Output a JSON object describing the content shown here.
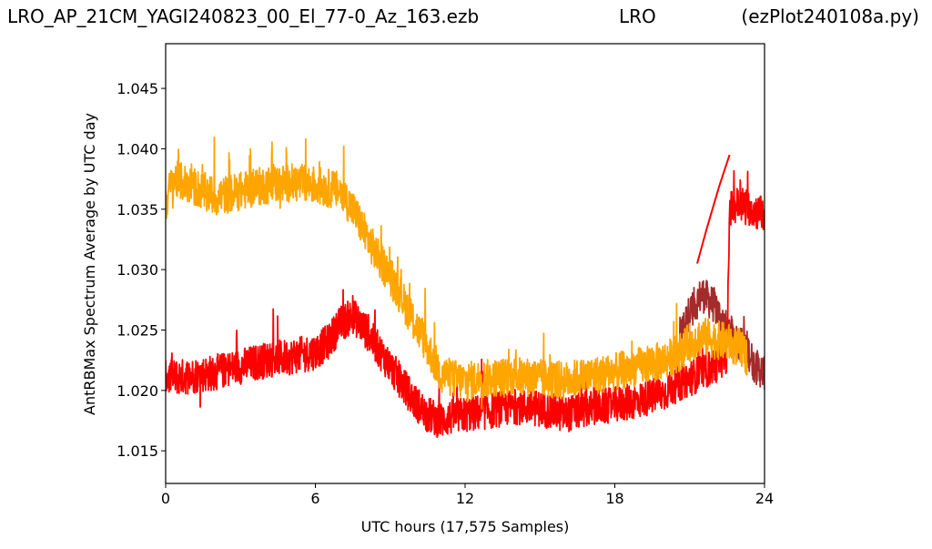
{
  "header": {
    "left": "LRO_AP_21CM_YAGI240823_00_El_77-0_Az_163.ezb",
    "middle": "LRO",
    "right": "(ezPlot240108a.py)"
  },
  "chart_data": {
    "type": "line",
    "title": "",
    "xlabel": "UTC hours  (17,575 Samples)",
    "ylabel": "AntRBMax Spectrum Average by UTC day",
    "xlim": [
      0,
      24
    ],
    "ylim": [
      1.0123,
      1.0487
    ],
    "xticks": [
      0,
      6,
      12,
      18,
      24
    ],
    "xtick_labels": [
      "0",
      "6",
      "12",
      "18",
      "24"
    ],
    "yticks": [
      1.015,
      1.02,
      1.025,
      1.03,
      1.035,
      1.04,
      1.045
    ],
    "ytick_labels": [
      "1.015",
      "1.020",
      "1.025",
      "1.030",
      "1.035",
      "1.040",
      "1.045"
    ],
    "grid": false,
    "legend": "none",
    "series": [
      {
        "color": "#a52a2a",
        "x": [
          20.6,
          21.0,
          21.5,
          22.0,
          22.5,
          23.0,
          23.3,
          23.6,
          24.0
        ],
        "y": [
          1.0245,
          1.0265,
          1.028,
          1.027,
          1.025,
          1.024,
          1.0235,
          1.022,
          1.0215
        ],
        "noise": 0.003
      },
      {
        "color": "#ff0000",
        "x": [
          0,
          1,
          2,
          3,
          4,
          5,
          6,
          6.5,
          7,
          7.5,
          8,
          8.5,
          9,
          9.5,
          10,
          10.5,
          11,
          11.5,
          12,
          13,
          14,
          15,
          16,
          17,
          18,
          19,
          20,
          20.5,
          21,
          21.5,
          22,
          22.5,
          22.6,
          23,
          23.5,
          24
        ],
        "y": [
          1.021,
          1.0212,
          1.0215,
          1.022,
          1.0225,
          1.0228,
          1.0232,
          1.024,
          1.0255,
          1.0262,
          1.025,
          1.0235,
          1.022,
          1.0205,
          1.019,
          1.018,
          1.0175,
          1.0178,
          1.018,
          1.0183,
          1.0187,
          1.0185,
          1.018,
          1.0185,
          1.0188,
          1.0192,
          1.0198,
          1.0205,
          1.021,
          1.0215,
          1.022,
          1.023,
          1.035,
          1.0355,
          1.035,
          1.0345
        ],
        "noise": 0.003
      },
      {
        "color": "#ffa500",
        "x": [
          0,
          0.3,
          1,
          2,
          3,
          4,
          5,
          6,
          7,
          7.5,
          8,
          8.5,
          9,
          9.5,
          10,
          10.5,
          11,
          11.5,
          12,
          13,
          14,
          15,
          16,
          17,
          18,
          19,
          20,
          20.5,
          21,
          21.5,
          22,
          22.5,
          23,
          23.3
        ],
        "y": [
          1.0355,
          1.0375,
          1.037,
          1.036,
          1.0365,
          1.037,
          1.0372,
          1.037,
          1.0365,
          1.035,
          1.033,
          1.031,
          1.0295,
          1.0275,
          1.0255,
          1.0235,
          1.0215,
          1.021,
          1.0208,
          1.021,
          1.0212,
          1.021,
          1.0208,
          1.0212,
          1.0215,
          1.022,
          1.0225,
          1.023,
          1.024,
          1.0245,
          1.0242,
          1.024,
          1.0235,
          1.0228
        ],
        "noise": 0.0032
      }
    ],
    "connector": {
      "color": "#ff0000",
      "x": [
        21.3,
        21.7,
        22.2,
        22.6
      ],
      "y": [
        1.0305,
        1.0335,
        1.037,
        1.0395
      ]
    }
  }
}
